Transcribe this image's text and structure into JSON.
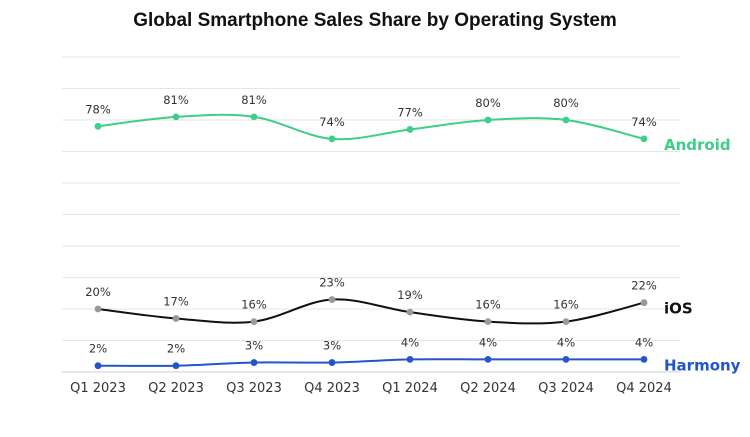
{
  "chart_data": {
    "type": "line",
    "title": "Global Smartphone Sales Share by Operating System",
    "categories": [
      "Q1 2023",
      "Q2 2023",
      "Q3 2023",
      "Q4 2023",
      "Q1 2024",
      "Q2 2024",
      "Q3 2024",
      "Q4 2024"
    ],
    "series": [
      {
        "name": "Android",
        "values": [
          78,
          81,
          81,
          74,
          77,
          80,
          80,
          74
        ],
        "labels": [
          "78%",
          "81%",
          "81%",
          "74%",
          "77%",
          "80%",
          "80%",
          "74%"
        ],
        "color": "#3dcf85",
        "marker_color": "#3dcf85",
        "label_color": "#3dcf85"
      },
      {
        "name": "iOS",
        "values": [
          20,
          17,
          16,
          23,
          19,
          16,
          16,
          22
        ],
        "labels": [
          "20%",
          "17%",
          "16%",
          "23%",
          "19%",
          "16%",
          "16%",
          "22%"
        ],
        "color": "#111111",
        "marker_color": "#999999",
        "label_color": "#111111"
      },
      {
        "name": "Harmony",
        "values": [
          2,
          2,
          3,
          3,
          4,
          4,
          4,
          4
        ],
        "labels": [
          "2%",
          "2%",
          "3%",
          "3%",
          "4%",
          "4%",
          "4%",
          "4%"
        ],
        "color": "#2255cc",
        "marker_color": "#2255cc",
        "label_color": "#2255cc"
      }
    ],
    "xlabel": "",
    "ylabel": "",
    "ylim": [
      0,
      100
    ],
    "grid": true,
    "legend": "inline-right"
  }
}
